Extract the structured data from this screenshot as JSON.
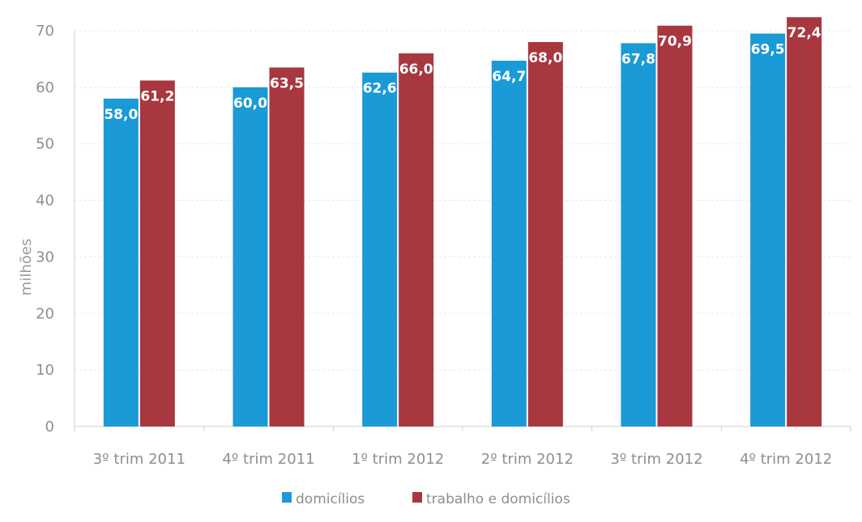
{
  "chart_data": {
    "type": "bar",
    "title": "",
    "xlabel": "",
    "ylabel": "milhões",
    "ylim": [
      0,
      70
    ],
    "yticks": [
      "0",
      "10",
      "20",
      "30",
      "40",
      "50",
      "60",
      "70"
    ],
    "categories": [
      "3º trim 2011",
      "4º trim 2011",
      "1º trim 2012",
      "2º trim 2012",
      "3º trim 2012",
      "4º trim 2012"
    ],
    "series": [
      {
        "name": "domicílios",
        "color": "#1a9ad6",
        "values": [
          58.0,
          60.0,
          62.6,
          64.7,
          67.8,
          69.5
        ],
        "labels": [
          "58,0",
          "60,0",
          "62,6",
          "64,7",
          "67,8",
          "69,5"
        ]
      },
      {
        "name": "trabalho e domicílios",
        "color": "#a8373f",
        "values": [
          61.2,
          63.5,
          66.0,
          68.0,
          70.9,
          72.4
        ],
        "labels": [
          "61,2",
          "63,5",
          "66,0",
          "68,0",
          "70,9",
          "72,4"
        ]
      }
    ],
    "grid": true,
    "legend": "bottom"
  }
}
